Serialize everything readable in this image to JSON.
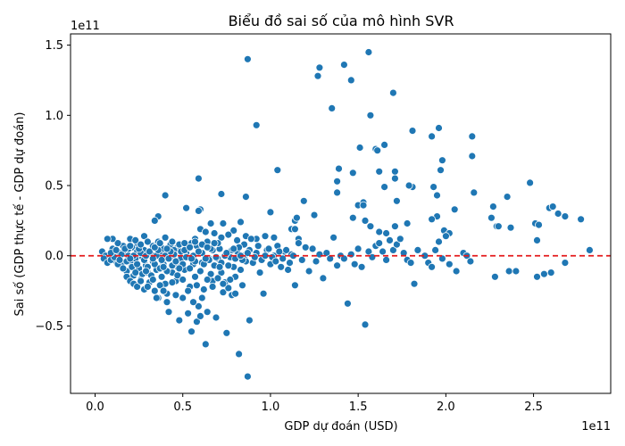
{
  "chart_data": {
    "type": "scatter",
    "title": "Biểu đồ sai số của mô hình SVR",
    "xlabel": "GDP dự đoán (USD)",
    "ylabel": "Sai số (GDP thực tế - GDP dự đoán)",
    "x_offset_text": "1e11",
    "y_offset_text": "1e11",
    "x_unit_scale": 100000000000.0,
    "y_unit_scale": 100000000000.0,
    "xlim": [
      -0.14,
      2.94
    ],
    "ylim": [
      -0.98,
      1.58
    ],
    "x_ticks": [
      0.0,
      0.5,
      1.0,
      1.5,
      2.0,
      2.5
    ],
    "x_tick_labels": [
      "0.0",
      "0.5",
      "1.0",
      "1.5",
      "2.0",
      "2.5"
    ],
    "y_ticks": [
      -0.5,
      0.0,
      0.5,
      1.0,
      1.5
    ],
    "y_tick_labels": [
      "−0.5",
      "0.0",
      "0.5",
      "1.0",
      "1.5"
    ],
    "grid": false,
    "zero_line": {
      "y": 0,
      "color": "#e41a1c",
      "style": "dashed"
    },
    "marker_color": "#1f77b4",
    "marker_edge": "#ffffff",
    "points": [
      [
        0.87,
        1.4
      ],
      [
        1.56,
        1.45
      ],
      [
        1.28,
        1.34
      ],
      [
        1.42,
        1.36
      ],
      [
        1.27,
        1.28
      ],
      [
        1.46,
        1.25
      ],
      [
        1.7,
        1.16
      ],
      [
        1.35,
        1.05
      ],
      [
        1.57,
        1.0
      ],
      [
        0.92,
        0.93
      ],
      [
        1.96,
        0.91
      ],
      [
        1.81,
        0.89
      ],
      [
        2.15,
        0.85
      ],
      [
        1.92,
        0.85
      ],
      [
        1.65,
        0.79
      ],
      [
        1.51,
        0.77
      ],
      [
        1.6,
        0.76
      ],
      [
        1.61,
        0.75
      ],
      [
        2.15,
        0.71
      ],
      [
        1.98,
        0.68
      ],
      [
        1.04,
        0.61
      ],
      [
        1.39,
        0.62
      ],
      [
        1.62,
        0.6
      ],
      [
        1.71,
        0.6
      ],
      [
        1.47,
        0.59
      ],
      [
        1.97,
        0.61
      ],
      [
        1.38,
        0.53
      ],
      [
        1.71,
        0.55
      ],
      [
        1.65,
        0.49
      ],
      [
        1.81,
        0.49
      ],
      [
        1.79,
        0.5
      ],
      [
        1.93,
        0.49
      ],
      [
        2.48,
        0.52
      ],
      [
        0.59,
        0.55
      ],
      [
        0.4,
        0.43
      ],
      [
        0.72,
        0.44
      ],
      [
        1.38,
        0.45
      ],
      [
        1.95,
        0.43
      ],
      [
        2.16,
        0.45
      ],
      [
        2.35,
        0.42
      ],
      [
        0.86,
        0.42
      ],
      [
        1.19,
        0.39
      ],
      [
        1.53,
        0.38
      ],
      [
        1.72,
        0.39
      ],
      [
        1.5,
        0.36
      ],
      [
        1.53,
        0.36
      ],
      [
        2.27,
        0.35
      ],
      [
        2.59,
        0.34
      ],
      [
        2.61,
        0.35
      ],
      [
        0.52,
        0.34
      ],
      [
        0.6,
        0.33
      ],
      [
        0.59,
        0.32
      ],
      [
        1.0,
        0.31
      ],
      [
        1.95,
        0.28
      ],
      [
        2.26,
        0.27
      ],
      [
        2.64,
        0.3
      ],
      [
        2.68,
        0.28
      ],
      [
        2.77,
        0.26
      ],
      [
        2.05,
        0.33
      ],
      [
        1.14,
        0.25
      ],
      [
        1.25,
        0.29
      ],
      [
        1.47,
        0.27
      ],
      [
        1.54,
        0.25
      ],
      [
        0.36,
        0.28
      ],
      [
        0.34,
        0.25
      ],
      [
        0.66,
        0.23
      ],
      [
        0.73,
        0.23
      ],
      [
        0.83,
        0.24
      ],
      [
        1.15,
        0.27
      ],
      [
        1.78,
        0.23
      ],
      [
        1.92,
        0.26
      ],
      [
        2.29,
        0.21
      ],
      [
        2.37,
        0.2
      ],
      [
        2.51,
        0.23
      ],
      [
        2.53,
        0.22
      ],
      [
        1.57,
        0.21
      ],
      [
        1.71,
        0.21
      ],
      [
        1.99,
        0.18
      ],
      [
        2.02,
        0.16
      ],
      [
        1.62,
        0.17
      ],
      [
        1.66,
        0.16
      ],
      [
        0.79,
        0.18
      ],
      [
        0.86,
        0.14
      ],
      [
        0.92,
        0.12
      ],
      [
        0.97,
        0.14
      ],
      [
        1.02,
        0.13
      ],
      [
        1.12,
        0.19
      ],
      [
        1.14,
        0.19
      ],
      [
        1.16,
        0.12
      ],
      [
        0.6,
        0.19
      ],
      [
        0.63,
        0.17
      ],
      [
        0.68,
        0.16
      ],
      [
        0.72,
        0.13
      ],
      [
        0.76,
        0.15
      ],
      [
        0.81,
        0.11
      ],
      [
        0.57,
        0.12
      ],
      [
        0.55,
        0.09
      ],
      [
        0.47,
        0.06
      ],
      [
        0.43,
        0.08
      ],
      [
        0.4,
        0.13
      ],
      [
        0.36,
        0.1
      ],
      [
        0.33,
        0.07
      ],
      [
        0.28,
        0.14
      ],
      [
        0.24,
        0.09
      ],
      [
        0.2,
        0.12
      ],
      [
        0.16,
        0.07
      ],
      [
        0.13,
        0.09
      ],
      [
        0.1,
        0.12
      ],
      [
        0.07,
        0.12
      ],
      [
        0.04,
        0.03
      ],
      [
        0.06,
        0.0
      ],
      [
        0.08,
        -0.02
      ],
      [
        0.1,
        0.05
      ],
      [
        0.12,
        -0.04
      ],
      [
        0.14,
        0.02
      ],
      [
        0.15,
        -0.07
      ],
      [
        0.17,
        0.03
      ],
      [
        0.18,
        -0.11
      ],
      [
        0.19,
        0.0
      ],
      [
        0.2,
        -0.05
      ],
      [
        0.21,
        0.06
      ],
      [
        0.22,
        -0.14
      ],
      [
        0.23,
        -0.02
      ],
      [
        0.24,
        0.03
      ],
      [
        0.25,
        -0.09
      ],
      [
        0.26,
        -0.17
      ],
      [
        0.27,
        -0.01
      ],
      [
        0.28,
        0.04
      ],
      [
        0.29,
        -0.07
      ],
      [
        0.3,
        -0.12
      ],
      [
        0.31,
        -0.19
      ],
      [
        0.32,
        0.01
      ],
      [
        0.33,
        -0.04
      ],
      [
        0.34,
        -0.25
      ],
      [
        0.35,
        -0.1
      ],
      [
        0.36,
        -0.3
      ],
      [
        0.37,
        0.03
      ],
      [
        0.38,
        -0.15
      ],
      [
        0.39,
        -0.06
      ],
      [
        0.4,
        -0.2
      ],
      [
        0.41,
        -0.27
      ],
      [
        0.42,
        -0.4
      ],
      [
        0.43,
        -0.01
      ],
      [
        0.44,
        -0.12
      ],
      [
        0.45,
        0.04
      ],
      [
        0.46,
        -0.18
      ],
      [
        0.47,
        -0.08
      ],
      [
        0.48,
        -0.46
      ],
      [
        0.49,
        -0.02
      ],
      [
        0.5,
        -0.3
      ],
      [
        0.51,
        -0.1
      ],
      [
        0.52,
        0.02
      ],
      [
        0.53,
        -0.41
      ],
      [
        0.54,
        -0.22
      ],
      [
        0.55,
        -0.54
      ],
      [
        0.56,
        -0.06
      ],
      [
        0.57,
        -0.15
      ],
      [
        0.58,
        -0.47
      ],
      [
        0.59,
        -0.36
      ],
      [
        0.6,
        -0.43
      ],
      [
        0.61,
        -0.05
      ],
      [
        0.62,
        -0.24
      ],
      [
        0.63,
        -0.63
      ],
      [
        0.64,
        -0.4
      ],
      [
        0.65,
        -0.02
      ],
      [
        0.66,
        -0.13
      ],
      [
        0.67,
        -0.18
      ],
      [
        0.68,
        -0.07
      ],
      [
        0.69,
        -0.44
      ],
      [
        0.7,
        -0.02
      ],
      [
        0.71,
        0.05
      ],
      [
        0.72,
        -0.12
      ],
      [
        0.73,
        -0.26
      ],
      [
        0.74,
        -0.19
      ],
      [
        0.75,
        -0.55
      ],
      [
        0.76,
        -0.23
      ],
      [
        0.77,
        -0.01
      ],
      [
        0.78,
        -0.28
      ],
      [
        0.79,
        -0.08
      ],
      [
        0.8,
        -0.15
      ],
      [
        0.81,
        0.03
      ],
      [
        0.82,
        -0.7
      ],
      [
        0.83,
        -0.1
      ],
      [
        0.84,
        -0.21
      ],
      [
        0.85,
        0.08
      ],
      [
        0.86,
        -0.04
      ],
      [
        0.87,
        -0.86
      ],
      [
        0.88,
        -0.46
      ],
      [
        0.89,
        0.12
      ],
      [
        0.9,
        -0.05
      ],
      [
        0.92,
        0.02
      ],
      [
        0.94,
        -0.12
      ],
      [
        0.96,
        -0.27
      ],
      [
        0.98,
        0.04
      ],
      [
        1.0,
        -0.06
      ],
      [
        1.02,
        0.0
      ],
      [
        1.04,
        0.07
      ],
      [
        1.06,
        -0.08
      ],
      [
        1.08,
        0.03
      ],
      [
        1.1,
        -0.1
      ],
      [
        1.12,
        0.01
      ],
      [
        1.14,
        -0.21
      ],
      [
        1.16,
        0.09
      ],
      [
        1.18,
        -0.03
      ],
      [
        1.2,
        0.06
      ],
      [
        1.22,
        -0.11
      ],
      [
        1.24,
        0.05
      ],
      [
        1.26,
        -0.04
      ],
      [
        1.28,
        0.01
      ],
      [
        1.3,
        -0.16
      ],
      [
        1.32,
        0.02
      ],
      [
        1.34,
        -0.02
      ],
      [
        1.36,
        0.13
      ],
      [
        1.38,
        -0.07
      ],
      [
        1.4,
        0.0
      ],
      [
        1.42,
        -0.02
      ],
      [
        1.44,
        -0.34
      ],
      [
        1.46,
        0.01
      ],
      [
        1.48,
        -0.06
      ],
      [
        1.5,
        0.05
      ],
      [
        1.52,
        -0.08
      ],
      [
        1.54,
        -0.49
      ],
      [
        1.56,
        0.03
      ],
      [
        1.58,
        -0.01
      ],
      [
        1.6,
        0.07
      ],
      [
        1.62,
        0.09
      ],
      [
        1.64,
        0.03
      ],
      [
        1.66,
        -0.03
      ],
      [
        1.68,
        0.11
      ],
      [
        1.7,
        0.04
      ],
      [
        1.72,
        0.08
      ],
      [
        1.74,
        0.12
      ],
      [
        1.76,
        0.02
      ],
      [
        1.78,
        -0.03
      ],
      [
        1.8,
        -0.05
      ],
      [
        1.82,
        -0.2
      ],
      [
        1.84,
        0.04
      ],
      [
        1.88,
        0.0
      ],
      [
        1.9,
        -0.05
      ],
      [
        1.92,
        -0.08
      ],
      [
        1.94,
        0.04
      ],
      [
        1.96,
        0.1
      ],
      [
        1.98,
        -0.02
      ],
      [
        2.0,
        0.14
      ],
      [
        2.02,
        -0.06
      ],
      [
        2.06,
        -0.11
      ],
      [
        2.1,
        0.02
      ],
      [
        2.12,
        0.0
      ],
      [
        2.14,
        -0.04
      ],
      [
        2.28,
        -0.15
      ],
      [
        2.36,
        -0.11
      ],
      [
        2.4,
        -0.11
      ],
      [
        2.52,
        -0.15
      ],
      [
        2.56,
        -0.13
      ],
      [
        2.6,
        -0.12
      ],
      [
        2.68,
        -0.05
      ],
      [
        2.82,
        0.04
      ],
      [
        2.52,
        0.11
      ],
      [
        2.3,
        0.21
      ],
      [
        0.4,
        0.0
      ],
      [
        0.05,
        -0.02
      ],
      [
        0.07,
        -0.05
      ],
      [
        0.09,
        -0.03
      ],
      [
        0.11,
        -0.01
      ],
      [
        0.13,
        -0.06
      ],
      [
        0.15,
        0.01
      ],
      [
        0.16,
        -0.09
      ],
      [
        0.18,
        -0.04
      ],
      [
        0.19,
        0.05
      ],
      [
        0.21,
        -0.08
      ],
      [
        0.22,
        0.0
      ],
      [
        0.23,
        -0.12
      ],
      [
        0.24,
        -0.06
      ],
      [
        0.26,
        0.02
      ],
      [
        0.27,
        -0.13
      ],
      [
        0.28,
        -0.03
      ],
      [
        0.29,
        0.0
      ],
      [
        0.3,
        -0.08
      ],
      [
        0.31,
        0.03
      ],
      [
        0.32,
        -0.14
      ],
      [
        0.34,
        -0.06
      ],
      [
        0.35,
        0.0
      ],
      [
        0.37,
        -0.09
      ],
      [
        0.38,
        -0.03
      ],
      [
        0.39,
        0.05
      ],
      [
        0.41,
        -0.11
      ],
      [
        0.42,
        -0.02
      ],
      [
        0.44,
        -0.07
      ],
      [
        0.45,
        0.01
      ],
      [
        0.46,
        -0.04
      ],
      [
        0.47,
        -0.14
      ],
      [
        0.49,
        0.03
      ],
      [
        0.5,
        -0.06
      ],
      [
        0.52,
        -0.01
      ],
      [
        0.53,
        0.06
      ],
      [
        0.54,
        -0.09
      ],
      [
        0.56,
        0.0
      ],
      [
        0.57,
        -0.04
      ],
      [
        0.58,
        0.07
      ],
      [
        0.6,
        -0.11
      ],
      [
        0.61,
        0.02
      ],
      [
        0.62,
        -0.06
      ],
      [
        0.64,
        0.1
      ],
      [
        0.65,
        -0.03
      ],
      [
        0.67,
        0.04
      ],
      [
        0.69,
        -0.01
      ],
      [
        0.7,
        0.09
      ],
      [
        0.72,
        -0.05
      ],
      [
        0.74,
        0.0
      ],
      [
        0.76,
        -0.07
      ],
      [
        0.78,
        0.04
      ],
      [
        0.8,
        -0.02
      ],
      [
        0.82,
        0.06
      ],
      [
        0.84,
        -0.03
      ],
      [
        0.86,
        0.01
      ],
      [
        0.88,
        0.04
      ],
      [
        0.91,
        -0.01
      ],
      [
        0.93,
        0.07
      ],
      [
        0.95,
        -0.03
      ],
      [
        0.97,
        0.0
      ],
      [
        0.99,
        0.05
      ],
      [
        1.01,
        -0.01
      ],
      [
        1.03,
        -0.04
      ],
      [
        1.05,
        0.03
      ],
      [
        1.07,
        -0.02
      ],
      [
        1.09,
        0.04
      ],
      [
        1.11,
        -0.05
      ],
      [
        1.13,
        0.0
      ],
      [
        0.09,
        0.02
      ],
      [
        0.12,
        0.04
      ],
      [
        0.14,
        -0.03
      ],
      [
        0.17,
        0.05
      ],
      [
        0.2,
        -0.02
      ],
      [
        0.25,
        0.05
      ],
      [
        0.29,
        -0.11
      ],
      [
        0.33,
        -0.02
      ],
      [
        0.36,
        0.04
      ],
      [
        0.39,
        -0.08
      ],
      [
        0.43,
        0.03
      ],
      [
        0.48,
        -0.09
      ],
      [
        0.51,
        0.04
      ],
      [
        0.55,
        -0.02
      ],
      [
        0.59,
        0.03
      ],
      [
        0.63,
        -0.02
      ],
      [
        0.66,
        0.05
      ],
      [
        0.71,
        -0.08
      ],
      [
        0.75,
        0.02
      ],
      [
        0.79,
        0.05
      ],
      [
        0.83,
        0.0
      ],
      [
        0.87,
        0.02
      ],
      [
        0.18,
        -0.15
      ],
      [
        0.2,
        -0.18
      ],
      [
        0.22,
        -0.2
      ],
      [
        0.24,
        -0.22
      ],
      [
        0.26,
        -0.18
      ],
      [
        0.28,
        -0.24
      ],
      [
        0.3,
        -0.22
      ],
      [
        0.33,
        -0.17
      ],
      [
        0.35,
        -0.3
      ],
      [
        0.37,
        -0.21
      ],
      [
        0.39,
        -0.25
      ],
      [
        0.41,
        -0.33
      ],
      [
        0.44,
        -0.19
      ],
      [
        0.46,
        -0.28
      ],
      [
        0.5,
        -0.17
      ],
      [
        0.53,
        -0.25
      ],
      [
        0.56,
        -0.33
      ],
      [
        0.58,
        -0.21
      ],
      [
        0.61,
        -0.3
      ],
      [
        0.64,
        -0.17
      ],
      [
        0.67,
        -0.22
      ],
      [
        0.7,
        -0.16
      ],
      [
        0.73,
        -0.2
      ],
      [
        0.77,
        -0.17
      ],
      [
        0.8,
        -0.27
      ],
      [
        0.2,
        0.07
      ],
      [
        0.23,
        0.11
      ],
      [
        0.26,
        0.08
      ],
      [
        0.3,
        0.1
      ],
      [
        0.34,
        0.06
      ],
      [
        0.37,
        0.09
      ],
      [
        0.41,
        0.05
      ],
      [
        0.44,
        0.1
      ],
      [
        0.48,
        0.08
      ],
      [
        0.51,
        0.09
      ],
      [
        0.54,
        0.06
      ],
      [
        0.57,
        0.1
      ],
      [
        0.61,
        0.08
      ],
      [
        0.64,
        0.06
      ],
      [
        0.68,
        0.09
      ]
    ]
  }
}
